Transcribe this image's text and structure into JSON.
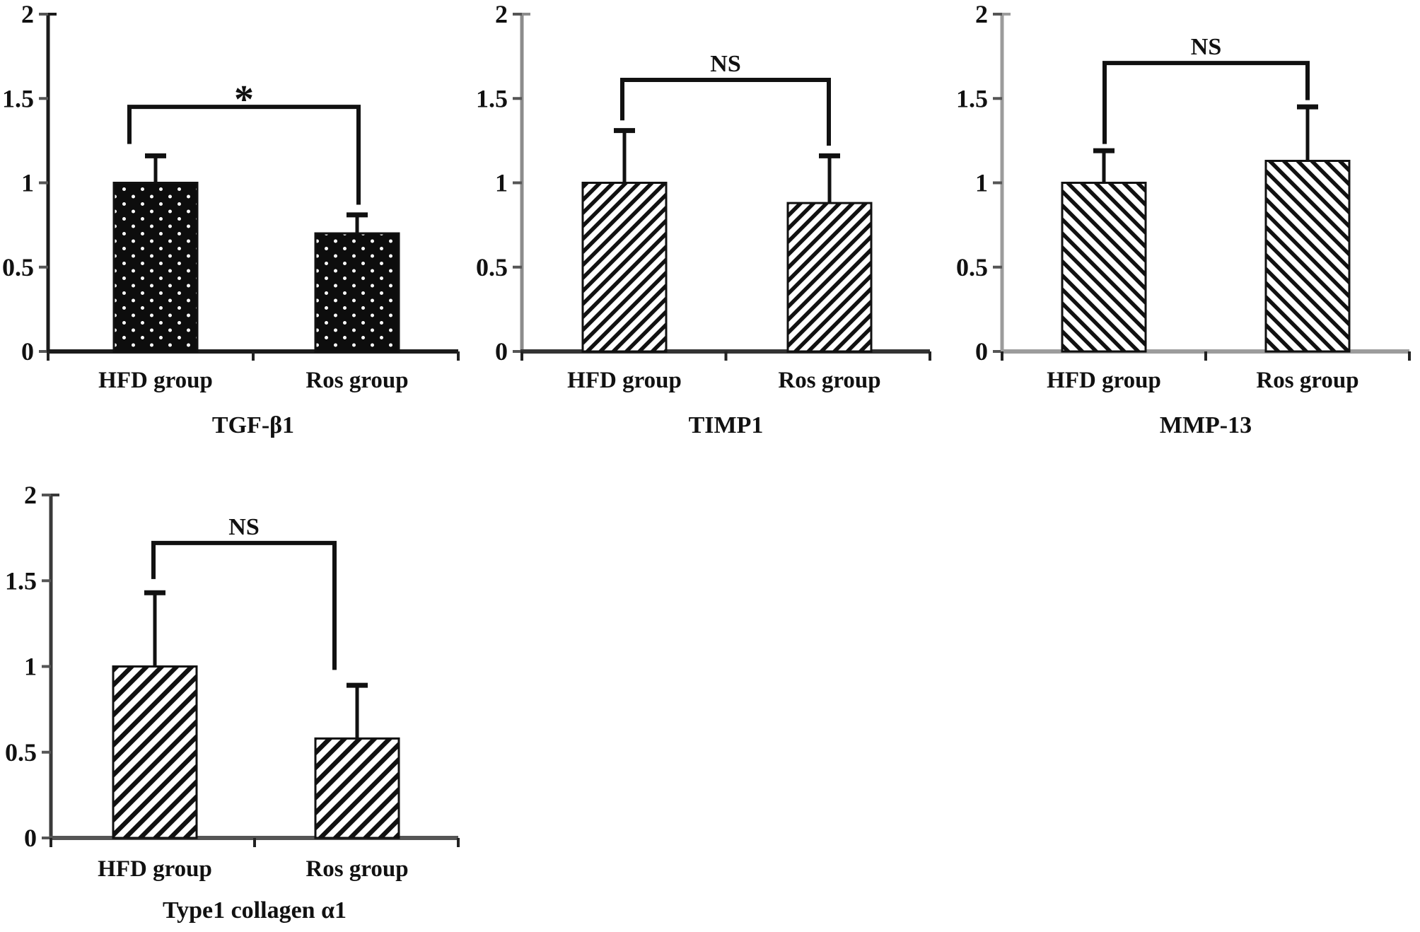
{
  "figure": {
    "background_color": "#ffffff",
    "text_color": "#111111",
    "description": "Four bar charts comparing relative mRNA expression between HFD group and Ros group"
  },
  "chart_data": [
    {
      "type": "bar",
      "title": "TGF-β1",
      "categories": [
        "HFD group",
        "Ros group"
      ],
      "values": [
        1.0,
        0.7
      ],
      "errors_plus": [
        0.16,
        0.11
      ],
      "ylim": [
        0,
        2
      ],
      "yticks": [
        {
          "value": 2,
          "label": "2"
        },
        {
          "value": 1.5,
          "label": "1.5"
        },
        {
          "value": 1,
          "label": "1"
        },
        {
          "value": 0.5,
          "label": "0.5"
        },
        {
          "value": 0,
          "label": "0"
        }
      ],
      "bar_pattern": "black-dots",
      "bar_colors": {
        "fill_base": "#0d0d0d",
        "accent": "#ffffff",
        "outline": "#111111"
      },
      "significance": {
        "label": "*",
        "bracket_y": 1.45,
        "left_leg_bottom": 1.23,
        "right_leg_bottom": 0.87
      },
      "axis_colors": {
        "y_axis": "#1b1b1b",
        "x_axis": "#1b1b1b"
      },
      "grid": false,
      "legend": "none"
    },
    {
      "type": "bar",
      "title": "TIMP1",
      "categories": [
        "HFD group",
        "Ros group"
      ],
      "values": [
        1.0,
        0.88
      ],
      "errors_plus": [
        0.31,
        0.28
      ],
      "ylim": [
        0,
        2
      ],
      "yticks": [
        {
          "value": 2,
          "label": "2"
        },
        {
          "value": 1.5,
          "label": "1.5"
        },
        {
          "value": 1,
          "label": "1"
        },
        {
          "value": 0.5,
          "label": "0.5"
        },
        {
          "value": 0,
          "label": "0"
        }
      ],
      "bar_pattern": "diagonal-down",
      "bar_colors": {
        "fill_base": "#ffffff",
        "accent": "#111111",
        "outline": "#111111"
      },
      "significance": {
        "label": "NS",
        "bracket_y": 1.61,
        "left_leg_bottom": 1.37,
        "right_leg_bottom": 1.22
      },
      "axis_colors": {
        "y_axis": "#8c8c8c",
        "x_axis": "#333333"
      },
      "grid": false,
      "legend": "none"
    },
    {
      "type": "bar",
      "title": "MMP-13",
      "categories": [
        "HFD group",
        "Ros group"
      ],
      "values": [
        1.0,
        1.13
      ],
      "errors_plus": [
        0.19,
        0.32
      ],
      "ylim": [
        0,
        2
      ],
      "yticks": [
        {
          "value": 2,
          "label": "2"
        },
        {
          "value": 1.5,
          "label": "1.5"
        },
        {
          "value": 1,
          "label": "1"
        },
        {
          "value": 0.5,
          "label": "0.5"
        },
        {
          "value": 0,
          "label": "0"
        }
      ],
      "bar_pattern": "diagonal-up",
      "bar_colors": {
        "fill_base": "#ffffff",
        "accent": "#111111",
        "outline": "#111111"
      },
      "significance": {
        "label": "NS",
        "bracket_y": 1.71,
        "left_leg_bottom": 1.23,
        "right_leg_bottom": 1.49
      },
      "axis_colors": {
        "y_axis": "#9c9c9c",
        "x_axis": "#9c9c9c"
      },
      "grid": false,
      "legend": "none"
    },
    {
      "type": "bar",
      "title": "Type1 collagen α1",
      "categories": [
        "HFD group",
        "Ros group"
      ],
      "values": [
        1.0,
        0.58
      ],
      "errors_plus": [
        0.43,
        0.31
      ],
      "ylim": [
        0,
        2
      ],
      "yticks": [
        {
          "value": 2,
          "label": "2"
        },
        {
          "value": 1.5,
          "label": "1.5"
        },
        {
          "value": 1,
          "label": "1"
        },
        {
          "value": 0.5,
          "label": "0.5"
        },
        {
          "value": 0,
          "label": "0"
        }
      ],
      "bar_pattern": "diagonal-down-coarse",
      "bar_colors": {
        "fill_base": "#ffffff",
        "accent": "#111111",
        "outline": "#111111"
      },
      "significance": {
        "label": "NS",
        "bracket_y": 1.72,
        "left_leg_bottom": 1.51,
        "right_leg_bottom": 0.98
      },
      "axis_colors": {
        "y_axis": "#3a3a3a",
        "x_axis": "#555555"
      },
      "grid": false,
      "legend": "none"
    }
  ]
}
